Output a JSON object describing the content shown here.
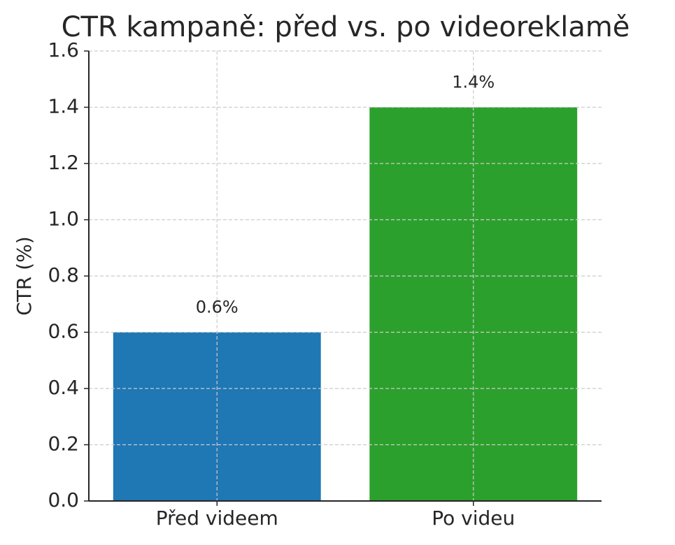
{
  "chart_data": {
    "type": "bar",
    "title": "CTR kampaně: před vs. po videoreklamě",
    "ylabel": "CTR (%)",
    "categories": [
      "Před videem",
      "Po videu"
    ],
    "values": [
      0.6,
      1.4
    ],
    "value_labels": [
      "0.6%",
      "1.4%"
    ],
    "colors": [
      "#1f77b4",
      "#2ca02c"
    ],
    "ylim": [
      0,
      1.6
    ],
    "yticks": [
      {
        "value": 0,
        "label": "0.0"
      },
      0.2,
      0.4,
      0.6,
      0.8,
      {
        "value": 1,
        "label": "1.0"
      },
      1.2,
      1.4,
      1.6
    ],
    "grid": true
  }
}
